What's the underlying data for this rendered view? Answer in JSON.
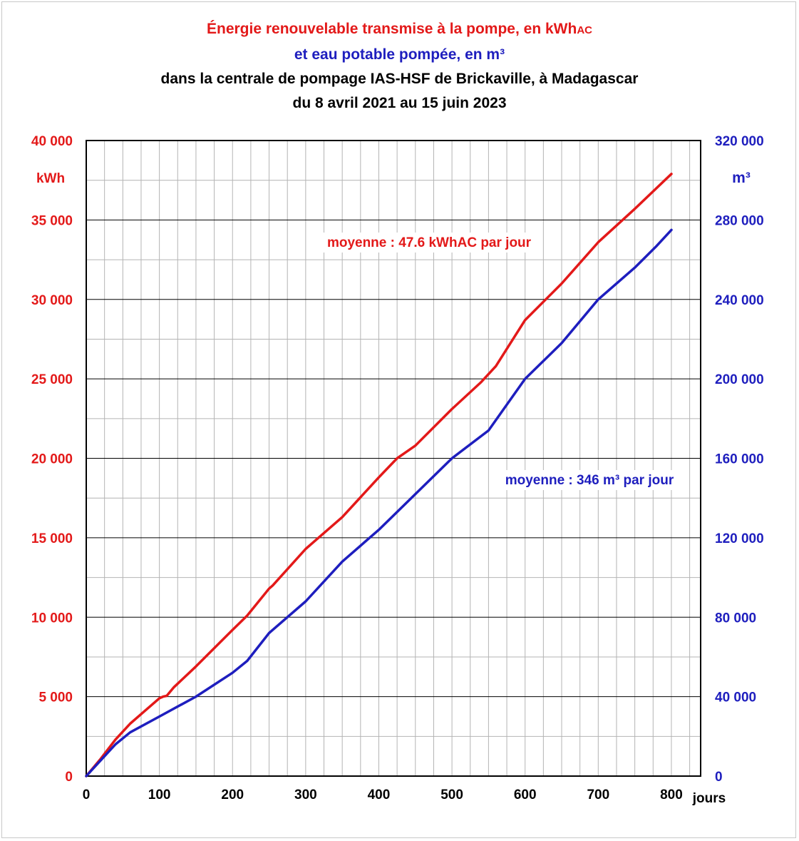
{
  "colors": {
    "energy": "#e31919",
    "water": "#1e1ebe",
    "title3": "#000000",
    "grid": "#b4b4b4",
    "gridMajor": "#000000"
  },
  "titles": {
    "line1_main": "Énergie renouvelable transmise à la pompe, en kWh",
    "line1_sub": "AC",
    "line2": "et eau potable pompée, en m³",
    "line3": "dans la centrale de pompage IAS-HSF de Brickaville, à Madagascar",
    "line4": "du 8 avril 2021 au 15 juin 2023"
  },
  "chart_data": {
    "type": "line",
    "xlabel": "jours",
    "ylabel_left": "kWh",
    "ylabel_right": "m³",
    "xlim": [
      0,
      840
    ],
    "ylim_left": [
      0,
      40000
    ],
    "ylim_right": [
      0,
      320000
    ],
    "x_ticks": [
      0,
      100,
      200,
      300,
      400,
      500,
      600,
      700,
      800
    ],
    "x_tick_labels": [
      "0",
      "100",
      "200",
      "300",
      "400",
      "500",
      "600",
      "700",
      "800"
    ],
    "y_left_ticks": [
      0,
      5000,
      10000,
      15000,
      20000,
      25000,
      30000,
      35000,
      40000
    ],
    "y_left_tick_labels": [
      "0",
      "5 000",
      "10 000",
      "15 000",
      "20 000",
      "25 000",
      "30 000",
      "35 000",
      "40 000"
    ],
    "y_right_ticks": [
      0,
      40000,
      80000,
      120000,
      160000,
      200000,
      240000,
      280000,
      320000
    ],
    "y_right_tick_labels": [
      "0",
      "40 000",
      "80 000",
      "120 000",
      "160 000",
      "200 000",
      "240 000",
      "280 000",
      "320 000"
    ],
    "grid": true,
    "series": [
      {
        "name": "Énergie renouvelable transmise à la pompe, en kWhAC",
        "axis": "left",
        "color": "#e31919",
        "x": [
          0,
          20,
          40,
          60,
          80,
          100,
          105,
          110,
          120,
          150,
          200,
          220,
          250,
          255,
          300,
          350,
          400,
          425,
          450,
          500,
          540,
          560,
          600,
          650,
          700,
          750,
          800
        ],
        "values": [
          0,
          1100,
          2300,
          3300,
          4100,
          4900,
          5000,
          5050,
          5600,
          6900,
          9200,
          10100,
          11800,
          12000,
          14300,
          16300,
          18800,
          20000,
          20800,
          23100,
          24800,
          25800,
          28700,
          31000,
          33600,
          35700,
          37900
        ]
      },
      {
        "name": "eau potable pompée, en m³",
        "axis": "right",
        "color": "#1e1ebe",
        "x": [
          0,
          20,
          40,
          60,
          100,
          150,
          200,
          220,
          250,
          300,
          350,
          400,
          425,
          450,
          500,
          550,
          600,
          650,
          700,
          750,
          780,
          800
        ],
        "values": [
          0,
          8000,
          16000,
          22000,
          30000,
          40000,
          52000,
          58000,
          72000,
          88000,
          108000,
          124000,
          133000,
          142000,
          160000,
          174000,
          200000,
          218000,
          240000,
          256000,
          267000,
          275000
        ]
      }
    ],
    "annotations": [
      {
        "text": "moyenne : 47.6 kWhAC par jour",
        "color": "#e31919"
      },
      {
        "text": "moyenne : 346 m³ par jour",
        "color": "#1e1ebe"
      }
    ]
  }
}
